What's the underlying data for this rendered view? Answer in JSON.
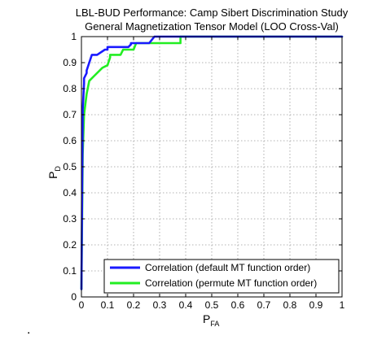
{
  "chart_data": {
    "type": "line",
    "title": [
      "LBL-BUD Performance:  Camp Sibert Discrimination Study",
      "General Magnetization Tensor Model  (LOO Cross-Val)"
    ],
    "xlabel": {
      "main": "P",
      "sub": "FA"
    },
    "ylabel": {
      "main": "P",
      "sub": "D"
    },
    "xlim": [
      0,
      1
    ],
    "ylim": [
      0,
      1
    ],
    "xticks": [
      "0",
      "0.1",
      "0.2",
      "0.3",
      "0.4",
      "0.5",
      "0.6",
      "0.7",
      "0.8",
      "0.9",
      "1"
    ],
    "yticks": [
      "0",
      "0.1",
      "0.2",
      "0.3",
      "0.4",
      "0.5",
      "0.6",
      "0.7",
      "0.8",
      "0.9",
      "1"
    ],
    "grid": true,
    "legend_position": "bottom-right",
    "series": [
      {
        "name": "Correlation (default MT function order)",
        "color": "#1a1aff",
        "x": [
          0,
          0.005,
          0.01,
          0.01,
          0.02,
          0.02,
          0.04,
          0.06,
          0.06,
          0.09,
          0.1,
          0.1,
          0.18,
          0.19,
          0.19,
          0.22,
          0.26,
          0.28,
          1.0
        ],
        "y": [
          0.03,
          0.72,
          0.82,
          0.84,
          0.86,
          0.87,
          0.93,
          0.93,
          0.93,
          0.95,
          0.95,
          0.96,
          0.96,
          0.97,
          0.975,
          0.975,
          0.975,
          1.0,
          1.0
        ]
      },
      {
        "name": "Correlation (permute MT function order)",
        "color": "#22ee22",
        "x": [
          0,
          0.005,
          0.01,
          0.02,
          0.03,
          0.04,
          0.05,
          0.08,
          0.1,
          0.11,
          0.11,
          0.15,
          0.16,
          0.2,
          0.21,
          0.25,
          0.38,
          0.38,
          1.0
        ],
        "y": [
          0.03,
          0.55,
          0.7,
          0.78,
          0.83,
          0.84,
          0.85,
          0.88,
          0.89,
          0.92,
          0.93,
          0.93,
          0.95,
          0.95,
          0.975,
          0.975,
          0.975,
          1.0,
          1.0
        ]
      }
    ],
    "footnote": "."
  }
}
